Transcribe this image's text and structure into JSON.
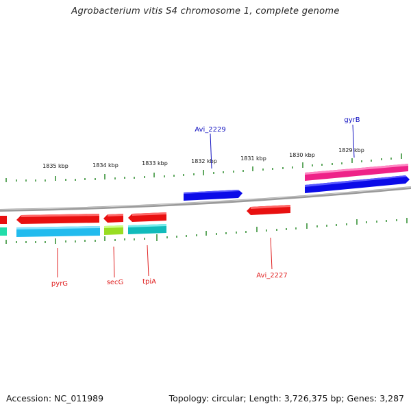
{
  "title": "Agrobacterium vitis S4 chromosome 1, complete genome",
  "footer": {
    "accession": "Accession: NC_011989",
    "summary": "Topology: circular; Length: 3,726,375 bp; Genes: 3,287"
  },
  "ticks": [
    "1835 kbp",
    "1834 kbp",
    "1833 kbp",
    "1832 kbp",
    "1831 kbp",
    "1830 kbp",
    "1829 kbp"
  ],
  "gene_labels": {
    "avi2229": "Avi_2229",
    "gyrB": "gyrB",
    "pyrG": "pyrG",
    "secG": "secG",
    "tpiA": "tpiA",
    "avi2227": "Avi_2227"
  },
  "colors": {
    "forward_label": "#1010c0",
    "reverse_label": "#e02020",
    "tick": "#228822",
    "backbone": "#888888",
    "cds_red": "#ee1111",
    "cds_blue": "#0a0ae6",
    "cds_pink": "#ee2288",
    "cds_cyan": "#22bbee",
    "cds_lime": "#99dd22",
    "cds_teal": "#11bbbb"
  }
}
